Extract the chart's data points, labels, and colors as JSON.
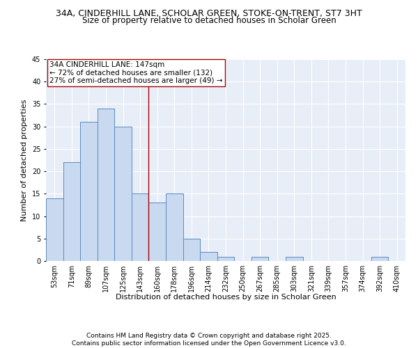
{
  "title_line1": "34A, CINDERHILL LANE, SCHOLAR GREEN, STOKE-ON-TRENT, ST7 3HT",
  "title_line2": "Size of property relative to detached houses in Scholar Green",
  "xlabel": "Distribution of detached houses by size in Scholar Green",
  "ylabel": "Number of detached properties",
  "categories": [
    "53sqm",
    "71sqm",
    "89sqm",
    "107sqm",
    "125sqm",
    "143sqm",
    "160sqm",
    "178sqm",
    "196sqm",
    "214sqm",
    "232sqm",
    "250sqm",
    "267sqm",
    "285sqm",
    "303sqm",
    "321sqm",
    "339sqm",
    "357sqm",
    "374sqm",
    "392sqm",
    "410sqm"
  ],
  "values": [
    14,
    22,
    31,
    34,
    30,
    15,
    13,
    15,
    5,
    2,
    1,
    0,
    1,
    0,
    1,
    0,
    0,
    0,
    0,
    1,
    0
  ],
  "bar_color": "#c9d9ef",
  "bar_edge_color": "#5b8bc0",
  "background_color": "#e8eef7",
  "vline_x": 5.5,
  "vline_color": "#aa0000",
  "annotation_line1": "34A CINDERHILL LANE: 147sqm",
  "annotation_line2": "← 72% of detached houses are smaller (132)",
  "annotation_line3": "27% of semi-detached houses are larger (49) →",
  "annotation_box_color": "white",
  "annotation_box_edge_color": "#aa0000",
  "footer_text": "Contains HM Land Registry data © Crown copyright and database right 2025.\nContains public sector information licensed under the Open Government Licence v3.0.",
  "ylim": [
    0,
    45
  ],
  "yticks": [
    0,
    5,
    10,
    15,
    20,
    25,
    30,
    35,
    40,
    45
  ],
  "title_fontsize": 9,
  "subtitle_fontsize": 8.5,
  "axis_label_fontsize": 8,
  "tick_fontsize": 7,
  "annotation_fontsize": 7.5,
  "footer_fontsize": 6.5
}
